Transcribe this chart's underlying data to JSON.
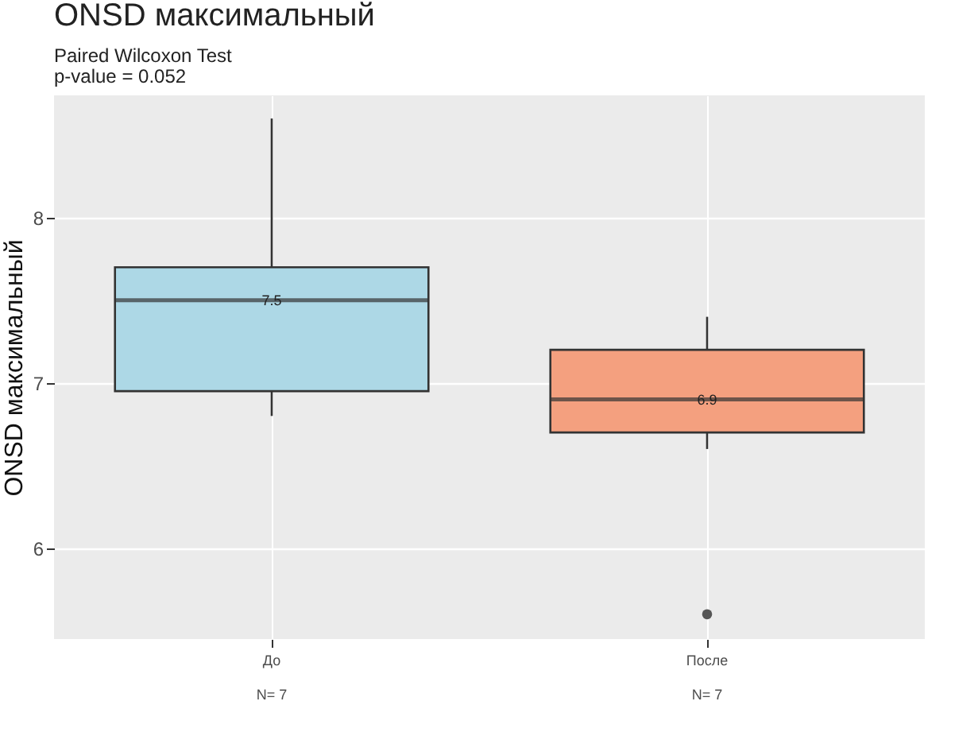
{
  "chart_data": {
    "type": "box",
    "title": "ONSD максимальный",
    "subtitle": "Paired Wilcoxon Test\np-value  =  0.052",
    "ylabel": "ONSD максимальный",
    "categories": [
      "До",
      "После"
    ],
    "boxes": [
      {
        "low": 6.8,
        "q1": 6.95,
        "median": 7.5,
        "q3": 7.7,
        "high": 8.6
      },
      {
        "low": 6.6,
        "q1": 6.7,
        "median": 6.9,
        "q3": 7.2,
        "high": 7.4,
        "outliers": [
          5.6
        ]
      }
    ],
    "colors": [
      "#add8e6",
      "#f4a07f"
    ],
    "ylim": [
      5.45,
      8.74
    ],
    "yticks": [
      6,
      7,
      8
    ],
    "grid": true,
    "value_labels": [
      "7.5",
      "6.9"
    ],
    "annotations": [
      "N= 7",
      "N= 7"
    ]
  }
}
